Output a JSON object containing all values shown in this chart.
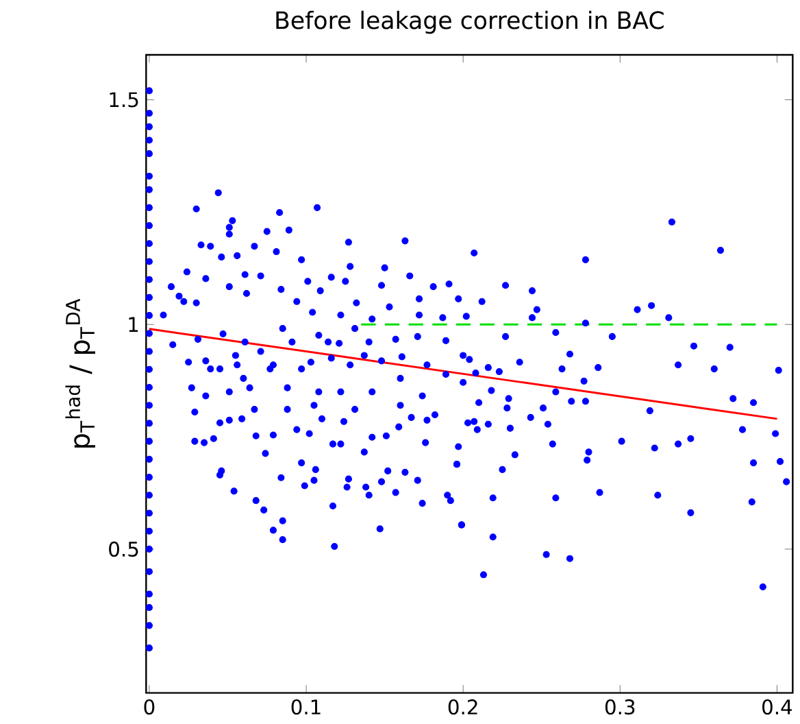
{
  "chart_data": {
    "type": "scatter",
    "title": "Before leakage correction in BAC",
    "ylabel": "p$_{T}$$^{had}$ / p$_{T}$$^{DA}$",
    "xlim": [
      -0.002,
      0.41
    ],
    "ylim": [
      0.18,
      1.6
    ],
    "xticks": [
      0,
      0.1,
      0.2,
      0.3,
      0.4
    ],
    "yticks": [
      0.5,
      1,
      1.5
    ],
    "grid": false,
    "series": [
      {
        "color": "#0000ff",
        "marker": "circle",
        "x": [
          0,
          0,
          0,
          0,
          0,
          0,
          0,
          0,
          0,
          0,
          0,
          0,
          0,
          0,
          0,
          0,
          0,
          0,
          0,
          0,
          0,
          0,
          0,
          0,
          0,
          0,
          0,
          0,
          0,
          0,
          0,
          0,
          0.333,
          0.364,
          0.207,
          0.278,
          0.227,
          0.244,
          0.311,
          0.32,
          0.331,
          0.347,
          0.37,
          0.337,
          0.36,
          0.401,
          0.372,
          0.385,
          0.319,
          0.378,
          0.399,
          0.301,
          0.322,
          0.337,
          0.345,
          0.385,
          0.402,
          0.406,
          0.324,
          0.345,
          0.384,
          0.391,
          0.287,
          0.268,
          0.253,
          0.259,
          0.219,
          0.213,
          0.199,
          0.219,
          0.225,
          0.233,
          0.257,
          0.28,
          0.279,
          0.295,
          0.259,
          0.268,
          0.286,
          0.263,
          0.277,
          0.269,
          0.278,
          0.259,
          0.243,
          0.251,
          0.254,
          0.236,
          0.229,
          0.228,
          0.23,
          0.216,
          0.223,
          0.216,
          0.209,
          0.203,
          0.197,
          0.196,
          0.218,
          0.21,
          0.208,
          0.227,
          0.247,
          0.244,
          0.212,
          0.278,
          0.197,
          0.044,
          0.03,
          0.083,
          0.107,
          0.053,
          0.051,
          0.051,
          0.089,
          0.075,
          0.033,
          0.039,
          0.067,
          0.081,
          0.127,
          0.163,
          0.15,
          0.128,
          0.097,
          0.046,
          0.056,
          0.024,
          0.014,
          0.166,
          0.148,
          0.125,
          0.116,
          0.101,
          0.181,
          0.191,
          0.172,
          0.153,
          0.132,
          0.109,
          0.071,
          0.061,
          0.036,
          0.019,
          0.009,
          0.202,
          0.187,
          0.172,
          0.142,
          0.122,
          0.104,
          0.094,
          0.084,
          0.062,
          0.051,
          0.03,
          0.022,
          0.015,
          0.031,
          0.047,
          0.061,
          0.085,
          0.108,
          0.121,
          0.131,
          0.14,
          0.157,
          0.171,
          0.189,
          0.177,
          0.161,
          0.2,
          0.204,
          0.148,
          0.128,
          0.103,
          0.079,
          0.055,
          0.036,
          0.025,
          0.045,
          0.027,
          0.029,
          0.035,
          0.041,
          0.045,
          0.046,
          0.054,
          0.068,
          0.073,
          0.079,
          0.085,
          0.085,
          0.084,
          0.097,
          0.099,
          0.105,
          0.106,
          0.117,
          0.118,
          0.127,
          0.126,
          0.117,
          0.122,
          0.138,
          0.14,
          0.147,
          0.148,
          0.152,
          0.157,
          0.163,
          0.171,
          0.174,
          0.176,
          0.19,
          0.192,
          0.196,
          0.199,
          0.137,
          0.142,
          0.151,
          0.159,
          0.167,
          0.177,
          0.182,
          0.029,
          0.068,
          0.074,
          0.051,
          0.059,
          0.045,
          0.094,
          0.102,
          0.11,
          0.124,
          0.079,
          0.067,
          0.088,
          0.108,
          0.122,
          0.142,
          0.16,
          0.174,
          0.189,
          0.16,
          0.137,
          0.116,
          0.097,
          0.077,
          0.06,
          0.039,
          0.056,
          0.071,
          0.091,
          0.114,
          0.036,
          0.051,
          0.064,
          0.088,
          0.105,
          0.131,
          0.2,
          0.207
        ],
        "values": [
          1.52,
          1.47,
          1.44,
          1.41,
          1.38,
          1.33,
          1.3,
          1.26,
          1.22,
          1.18,
          1.14,
          1.1,
          1.06,
          1.02,
          0.98,
          0.94,
          0.9,
          0.86,
          0.82,
          0.78,
          0.74,
          0.7,
          0.66,
          0.62,
          0.58,
          0.54,
          0.5,
          0.45,
          0.4,
          0.37,
          0.33,
          0.28,
          1.228,
          1.165,
          1.159,
          1.144,
          1.087,
          1.075,
          1.033,
          1.042,
          1.015,
          0.952,
          0.949,
          0.91,
          0.901,
          0.898,
          0.835,
          0.826,
          0.808,
          0.766,
          0.757,
          0.74,
          0.725,
          0.734,
          0.746,
          0.692,
          0.695,
          0.65,
          0.62,
          0.581,
          0.605,
          0.416,
          0.626,
          0.479,
          0.488,
          0.614,
          0.527,
          0.443,
          0.554,
          0.614,
          0.677,
          0.71,
          0.734,
          0.716,
          0.698,
          0.973,
          0.982,
          0.934,
          0.904,
          0.901,
          0.874,
          0.829,
          0.829,
          0.85,
          0.793,
          0.814,
          0.778,
          0.916,
          0.835,
          0.814,
          0.769,
          0.778,
          0.895,
          0.904,
          0.766,
          0.781,
          0.728,
          0.689,
          0.853,
          0.826,
          0.892,
          0.973,
          1.033,
          1.015,
          1.051,
          1.003,
          1.057,
          1.293,
          1.257,
          1.249,
          1.26,
          1.231,
          1.216,
          1.201,
          1.21,
          1.207,
          1.177,
          1.174,
          1.174,
          1.162,
          1.183,
          1.186,
          1.126,
          1.129,
          1.144,
          1.15,
          1.153,
          1.117,
          1.084,
          1.108,
          1.087,
          1.096,
          1.105,
          1.096,
          1.084,
          1.09,
          1.057,
          1.039,
          1.048,
          1.075,
          1.108,
          1.111,
          1.102,
          1.063,
          1.021,
          1.018,
          1.015,
          1.021,
          1.012,
          1.021,
          1.027,
          1.051,
          1.078,
          1.069,
          1.084,
          1.048,
          1.051,
          0.955,
          0.967,
          0.979,
          0.961,
          0.991,
          0.976,
          0.958,
          0.991,
          0.961,
          0.967,
          0.973,
          0.964,
          0.91,
          0.928,
          0.931,
          0.922,
          0.919,
          0.91,
          0.916,
          0.91,
          0.931,
          0.919,
          0.916,
          0.901,
          0.859,
          0.805,
          0.737,
          0.746,
          0.665,
          0.674,
          0.629,
          0.608,
          0.587,
          0.542,
          0.563,
          0.521,
          0.659,
          0.692,
          0.641,
          0.653,
          0.677,
          0.596,
          0.506,
          0.656,
          0.638,
          0.734,
          0.734,
          0.638,
          0.62,
          0.545,
          0.65,
          0.674,
          0.626,
          0.671,
          0.653,
          0.602,
          0.737,
          0.62,
          0.608,
          0.689,
          0.554,
          0.716,
          0.749,
          0.752,
          0.772,
          0.793,
          0.787,
          0.799,
          0.74,
          0.752,
          0.713,
          0.787,
          0.79,
          0.781,
          0.766,
          0.757,
          0.79,
          0.784,
          0.754,
          0.811,
          0.811,
          0.85,
          0.85,
          0.85,
          0.82,
          0.841,
          0.889,
          0.88,
          0.931,
          0.925,
          0.901,
          0.901,
          0.88,
          0.901,
          0.91,
          0.94,
          0.961,
          0.961,
          0.841,
          0.85,
          0.859,
          0.859,
          0.82,
          0.811,
          0.871,
          0.784
        ]
      },
      {
        "type": "line",
        "color": "#ff0000",
        "line_style": "solid",
        "x": [
          0,
          0.4
        ],
        "values": [
          0.99,
          0.79
        ]
      },
      {
        "type": "line",
        "color": "#00dd00",
        "line_style": "dashed",
        "x": [
          0.135,
          0.4
        ],
        "values": [
          1,
          1
        ]
      }
    ]
  }
}
